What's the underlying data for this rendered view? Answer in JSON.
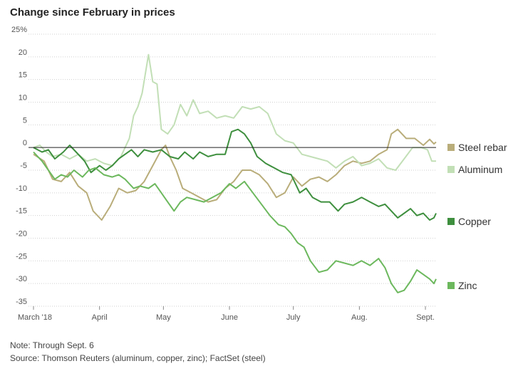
{
  "chart_data": {
    "type": "line",
    "title": "Change since February in prices",
    "y_ticks": [
      {
        "value": 25,
        "label": "25%"
      },
      {
        "value": 20,
        "label": "20"
      },
      {
        "value": 15,
        "label": "15"
      },
      {
        "value": 10,
        "label": "10"
      },
      {
        "value": 5,
        "label": "5"
      },
      {
        "value": 0,
        "label": "0"
      },
      {
        "value": -5,
        "label": "-5"
      },
      {
        "value": -10,
        "label": "-10"
      },
      {
        "value": -15,
        "label": "-15"
      },
      {
        "value": -20,
        "label": "-20"
      },
      {
        "value": -25,
        "label": "-25"
      },
      {
        "value": -30,
        "label": "-30"
      },
      {
        "value": -35,
        "label": "-35"
      }
    ],
    "ylim": [
      -35,
      25
    ],
    "x_ticks": [
      {
        "date": "2018-03-01",
        "label": "March '18"
      },
      {
        "date": "2018-04-01",
        "label": "April"
      },
      {
        "date": "2018-05-01",
        "label": "May"
      },
      {
        "date": "2018-06-01",
        "label": "June"
      },
      {
        "date": "2018-07-01",
        "label": "July"
      },
      {
        "date": "2018-08-01",
        "label": "Aug."
      },
      {
        "date": "2018-09-01",
        "label": "Sept."
      }
    ],
    "xlim": [
      "2018-03-01",
      "2018-09-06"
    ],
    "zero_line": true,
    "series": [
      {
        "name": "Steel rebar",
        "color": "#b9ad7a",
        "points": [
          [
            "2018-03-01",
            -1.5
          ],
          [
            "2018-03-06",
            -3
          ],
          [
            "2018-03-10",
            -7
          ],
          [
            "2018-03-14",
            -7.5
          ],
          [
            "2018-03-18",
            -5.5
          ],
          [
            "2018-03-22",
            -8.5
          ],
          [
            "2018-03-26",
            -10
          ],
          [
            "2018-03-29",
            -14
          ],
          [
            "2018-04-02",
            -16
          ],
          [
            "2018-04-06",
            -13
          ],
          [
            "2018-04-10",
            -9
          ],
          [
            "2018-04-14",
            -10
          ],
          [
            "2018-04-18",
            -9.5
          ],
          [
            "2018-04-22",
            -7.5
          ],
          [
            "2018-04-26",
            -4
          ],
          [
            "2018-04-30",
            -0.5
          ],
          [
            "2018-05-02",
            0.5
          ],
          [
            "2018-05-04",
            -2
          ],
          [
            "2018-05-07",
            -5
          ],
          [
            "2018-05-10",
            -9
          ],
          [
            "2018-05-14",
            -10
          ],
          [
            "2018-05-18",
            -11
          ],
          [
            "2018-05-22",
            -12
          ],
          [
            "2018-05-26",
            -11.5
          ],
          [
            "2018-05-30",
            -9
          ],
          [
            "2018-06-03",
            -7.5
          ],
          [
            "2018-06-07",
            -5
          ],
          [
            "2018-06-11",
            -5
          ],
          [
            "2018-06-15",
            -6
          ],
          [
            "2018-06-19",
            -8
          ],
          [
            "2018-06-23",
            -11
          ],
          [
            "2018-06-27",
            -10
          ],
          [
            "2018-07-01",
            -6.5
          ],
          [
            "2018-07-05",
            -8.5
          ],
          [
            "2018-07-09",
            -7
          ],
          [
            "2018-07-13",
            -6.5
          ],
          [
            "2018-07-17",
            -7.5
          ],
          [
            "2018-07-21",
            -6
          ],
          [
            "2018-07-25",
            -4
          ],
          [
            "2018-07-29",
            -3
          ],
          [
            "2018-08-02",
            -3.5
          ],
          [
            "2018-08-06",
            -3
          ],
          [
            "2018-08-10",
            -1.5
          ],
          [
            "2018-08-14",
            -0.5
          ],
          [
            "2018-08-16",
            3
          ],
          [
            "2018-08-19",
            4
          ],
          [
            "2018-08-23",
            2
          ],
          [
            "2018-08-27",
            2
          ],
          [
            "2018-08-31",
            0.5
          ],
          [
            "2018-09-03",
            1.8
          ],
          [
            "2018-09-05",
            0.8
          ],
          [
            "2018-09-06",
            1.2
          ]
        ]
      },
      {
        "name": "Aluminum",
        "color": "#c2dfb6",
        "points": [
          [
            "2018-03-01",
            0
          ],
          [
            "2018-03-04",
            0.5
          ],
          [
            "2018-03-07",
            -1
          ],
          [
            "2018-03-10",
            -2
          ],
          [
            "2018-03-14",
            -1.5
          ],
          [
            "2018-03-18",
            -2.5
          ],
          [
            "2018-03-22",
            -1.5
          ],
          [
            "2018-03-26",
            -3
          ],
          [
            "2018-03-30",
            -2.5
          ],
          [
            "2018-04-03",
            -3.5
          ],
          [
            "2018-04-07",
            -4
          ],
          [
            "2018-04-11",
            -2
          ],
          [
            "2018-04-15",
            2
          ],
          [
            "2018-04-17",
            7
          ],
          [
            "2018-04-19",
            9
          ],
          [
            "2018-04-21",
            12
          ],
          [
            "2018-04-24",
            20.5
          ],
          [
            "2018-04-26",
            14.5
          ],
          [
            "2018-04-28",
            14
          ],
          [
            "2018-04-30",
            4
          ],
          [
            "2018-05-03",
            3
          ],
          [
            "2018-05-06",
            5
          ],
          [
            "2018-05-09",
            9.5
          ],
          [
            "2018-05-12",
            7
          ],
          [
            "2018-05-15",
            10.5
          ],
          [
            "2018-05-18",
            7.5
          ],
          [
            "2018-05-22",
            8
          ],
          [
            "2018-05-26",
            6.5
          ],
          [
            "2018-05-30",
            7
          ],
          [
            "2018-06-03",
            6.5
          ],
          [
            "2018-06-07",
            9
          ],
          [
            "2018-06-11",
            8.5
          ],
          [
            "2018-06-15",
            9
          ],
          [
            "2018-06-19",
            7.5
          ],
          [
            "2018-06-23",
            3
          ],
          [
            "2018-06-27",
            1.5
          ],
          [
            "2018-07-01",
            1
          ],
          [
            "2018-07-05",
            -1.5
          ],
          [
            "2018-07-09",
            -2
          ],
          [
            "2018-07-13",
            -2.5
          ],
          [
            "2018-07-17",
            -3
          ],
          [
            "2018-07-21",
            -4.5
          ],
          [
            "2018-07-25",
            -3
          ],
          [
            "2018-07-29",
            -2
          ],
          [
            "2018-08-02",
            -4
          ],
          [
            "2018-08-06",
            -3.5
          ],
          [
            "2018-08-10",
            -2.5
          ],
          [
            "2018-08-14",
            -4.5
          ],
          [
            "2018-08-18",
            -5
          ],
          [
            "2018-08-22",
            -2.5
          ],
          [
            "2018-08-26",
            0
          ],
          [
            "2018-08-30",
            0
          ],
          [
            "2018-09-02",
            -0.5
          ],
          [
            "2018-09-04",
            -3
          ],
          [
            "2018-09-06",
            -3
          ]
        ]
      },
      {
        "name": "Copper",
        "color": "#3e8f3e",
        "points": [
          [
            "2018-03-01",
            0
          ],
          [
            "2018-03-05",
            -1
          ],
          [
            "2018-03-08",
            -0.5
          ],
          [
            "2018-03-11",
            -2.5
          ],
          [
            "2018-03-15",
            -1
          ],
          [
            "2018-03-18",
            0.5
          ],
          [
            "2018-03-21",
            -1
          ],
          [
            "2018-03-25",
            -3
          ],
          [
            "2018-03-28",
            -5.5
          ],
          [
            "2018-04-01",
            -4
          ],
          [
            "2018-04-04",
            -5
          ],
          [
            "2018-04-07",
            -4
          ],
          [
            "2018-04-10",
            -2.5
          ],
          [
            "2018-04-13",
            -1.5
          ],
          [
            "2018-04-16",
            -0.5
          ],
          [
            "2018-04-19",
            -2
          ],
          [
            "2018-04-22",
            -0.5
          ],
          [
            "2018-04-26",
            -1
          ],
          [
            "2018-04-30",
            -0.5
          ],
          [
            "2018-05-04",
            -2
          ],
          [
            "2018-05-08",
            -2.5
          ],
          [
            "2018-05-11",
            -1
          ],
          [
            "2018-05-15",
            -2.5
          ],
          [
            "2018-05-18",
            -1
          ],
          [
            "2018-05-22",
            -2
          ],
          [
            "2018-05-26",
            -1.5
          ],
          [
            "2018-05-30",
            -1.5
          ],
          [
            "2018-06-02",
            3.5
          ],
          [
            "2018-06-05",
            4
          ],
          [
            "2018-06-08",
            3
          ],
          [
            "2018-06-11",
            1
          ],
          [
            "2018-06-14",
            -2
          ],
          [
            "2018-06-18",
            -3.5
          ],
          [
            "2018-06-22",
            -4.5
          ],
          [
            "2018-06-26",
            -5.5
          ],
          [
            "2018-06-30",
            -6
          ],
          [
            "2018-07-04",
            -10
          ],
          [
            "2018-07-07",
            -9
          ],
          [
            "2018-07-10",
            -11
          ],
          [
            "2018-07-14",
            -12
          ],
          [
            "2018-07-18",
            -12
          ],
          [
            "2018-07-22",
            -14
          ],
          [
            "2018-07-25",
            -12.5
          ],
          [
            "2018-07-29",
            -12
          ],
          [
            "2018-08-02",
            -11
          ],
          [
            "2018-08-06",
            -12
          ],
          [
            "2018-08-10",
            -13
          ],
          [
            "2018-08-13",
            -12.5
          ],
          [
            "2018-08-16",
            -14
          ],
          [
            "2018-08-19",
            -15.5
          ],
          [
            "2018-08-22",
            -14.5
          ],
          [
            "2018-08-25",
            -13.5
          ],
          [
            "2018-08-28",
            -15
          ],
          [
            "2018-08-31",
            -14.5
          ],
          [
            "2018-09-03",
            -16
          ],
          [
            "2018-09-05",
            -15.5
          ],
          [
            "2018-09-06",
            -14.5
          ]
        ]
      },
      {
        "name": "Zinc",
        "color": "#6cb85d",
        "points": [
          [
            "2018-03-01",
            -1
          ],
          [
            "2018-03-05",
            -3
          ],
          [
            "2018-03-08",
            -5
          ],
          [
            "2018-03-11",
            -7
          ],
          [
            "2018-03-14",
            -6
          ],
          [
            "2018-03-17",
            -6.5
          ],
          [
            "2018-03-20",
            -5
          ],
          [
            "2018-03-24",
            -6.5
          ],
          [
            "2018-03-27",
            -5
          ],
          [
            "2018-03-30",
            -4.5
          ],
          [
            "2018-04-03",
            -6
          ],
          [
            "2018-04-07",
            -6.5
          ],
          [
            "2018-04-10",
            -6
          ],
          [
            "2018-04-13",
            -7
          ],
          [
            "2018-04-17",
            -9
          ],
          [
            "2018-04-20",
            -8.5
          ],
          [
            "2018-04-24",
            -9
          ],
          [
            "2018-04-27",
            -8
          ],
          [
            "2018-04-30",
            -10
          ],
          [
            "2018-05-03",
            -12
          ],
          [
            "2018-05-06",
            -14
          ],
          [
            "2018-05-09",
            -12
          ],
          [
            "2018-05-12",
            -11
          ],
          [
            "2018-05-16",
            -11.5
          ],
          [
            "2018-05-20",
            -12
          ],
          [
            "2018-05-24",
            -11
          ],
          [
            "2018-05-28",
            -10
          ],
          [
            "2018-06-01",
            -8
          ],
          [
            "2018-06-04",
            -9
          ],
          [
            "2018-06-08",
            -7.5
          ],
          [
            "2018-06-12",
            -10
          ],
          [
            "2018-06-16",
            -12.5
          ],
          [
            "2018-06-20",
            -15
          ],
          [
            "2018-06-24",
            -17
          ],
          [
            "2018-06-27",
            -17.5
          ],
          [
            "2018-06-30",
            -19
          ],
          [
            "2018-07-03",
            -21
          ],
          [
            "2018-07-06",
            -22
          ],
          [
            "2018-07-09",
            -25
          ],
          [
            "2018-07-13",
            -27.5
          ],
          [
            "2018-07-17",
            -27
          ],
          [
            "2018-07-21",
            -25
          ],
          [
            "2018-07-25",
            -25.5
          ],
          [
            "2018-07-29",
            -26
          ],
          [
            "2018-08-02",
            -25
          ],
          [
            "2018-08-06",
            -26
          ],
          [
            "2018-08-10",
            -24.5
          ],
          [
            "2018-08-13",
            -26.5
          ],
          [
            "2018-08-16",
            -30
          ],
          [
            "2018-08-19",
            -32
          ],
          [
            "2018-08-22",
            -31.5
          ],
          [
            "2018-08-25",
            -29.5
          ],
          [
            "2018-08-28",
            -27
          ],
          [
            "2018-08-31",
            -28
          ],
          [
            "2018-09-03",
            -29
          ],
          [
            "2018-09-05",
            -30
          ],
          [
            "2018-09-06",
            -29
          ]
        ]
      }
    ]
  },
  "footer": {
    "note": "Note: Through Sept. 6",
    "source": "Source: Thomson Reuters (aluminum, copper, zinc); FactSet (steel)"
  }
}
